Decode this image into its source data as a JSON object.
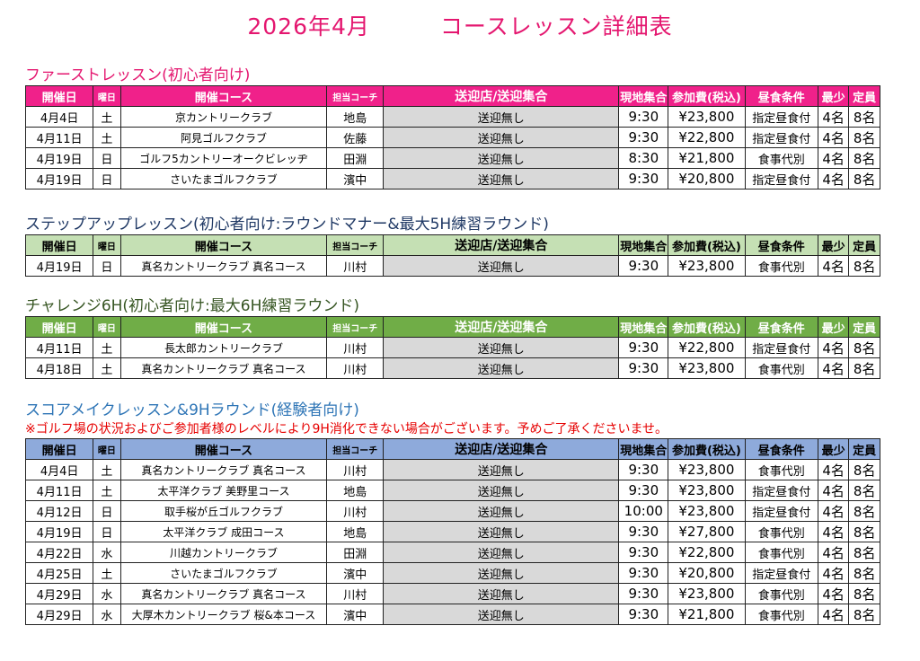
{
  "page": {
    "title": "2026年4月　　　コースレッスン詳細表",
    "title_color": "#e4166f"
  },
  "headers": {
    "date": "開催日",
    "weekday": "曜日",
    "course": "開催コース",
    "coach": "担当コーチ",
    "shuttle": "送迎店/送迎集合",
    "meet": "現地集合",
    "fee": "参加費(税込)",
    "lunch": "昼食条件",
    "min": "最少",
    "max": "定員"
  },
  "sections": [
    {
      "title": "ファーストレッスン(初心者向け)",
      "title_color": "#e4166f",
      "header_bg": "#f0218a",
      "header_text_color": "#ffffff",
      "rows": [
        {
          "date": "4月4日",
          "weekday": "土",
          "course": "京カントリークラブ",
          "coach": "地島",
          "shuttle": "送迎無し",
          "meet": "9:30",
          "fee": "¥23,800",
          "lunch": "指定昼食付",
          "min": "4名",
          "max": "8名"
        },
        {
          "date": "4月11日",
          "weekday": "土",
          "course": "阿見ゴルフクラブ",
          "coach": "佐藤",
          "shuttle": "送迎無し",
          "meet": "9:30",
          "fee": "¥22,800",
          "lunch": "指定昼食付",
          "min": "4名",
          "max": "8名"
        },
        {
          "date": "4月19日",
          "weekday": "日",
          "course": "ゴルフ5カントリーオークビレッヂ",
          "coach": "田淵",
          "shuttle": "送迎無し",
          "meet": "8:30",
          "fee": "¥21,800",
          "lunch": "食事代別",
          "min": "4名",
          "max": "8名"
        },
        {
          "date": "4月19日",
          "weekday": "日",
          "course": "さいたまゴルフクラブ",
          "coach": "濱中",
          "shuttle": "送迎無し",
          "meet": "9:30",
          "fee": "¥20,800",
          "lunch": "指定昼食付",
          "min": "4名",
          "max": "8名"
        }
      ]
    },
    {
      "title": "ステップアップレッスン(初心者向け:ラウンドマナー&最大5H練習ラウンド)",
      "title_color": "#1f3864",
      "header_bg": "#c5e0b4",
      "header_text_color": "#000000",
      "rows": [
        {
          "date": "4月19日",
          "weekday": "日",
          "course": "真名カントリークラブ 真名コース",
          "coach": "川村",
          "shuttle": "送迎無し",
          "meet": "9:30",
          "fee": "¥23,800",
          "lunch": "食事代別",
          "min": "4名",
          "max": "8名"
        }
      ]
    },
    {
      "title": "チャレンジ6H(初心者向け:最大6H練習ラウンド)",
      "title_color": "#375623",
      "header_bg": "#70ad47",
      "header_text_color": "#ffffff",
      "rows": [
        {
          "date": "4月11日",
          "weekday": "土",
          "course": "長太郎カントリークラブ",
          "coach": "川村",
          "shuttle": "送迎無し",
          "meet": "9:30",
          "fee": "¥22,800",
          "lunch": "指定昼食付",
          "min": "4名",
          "max": "8名"
        },
        {
          "date": "4月18日",
          "weekday": "土",
          "course": "真名カントリークラブ 真名コース",
          "coach": "川村",
          "shuttle": "送迎無し",
          "meet": "9:30",
          "fee": "¥23,800",
          "lunch": "食事代別",
          "min": "4名",
          "max": "8名"
        }
      ]
    },
    {
      "title": "スコアメイクレッスン&9Hラウンド(経験者向け)",
      "title_color": "#2e75b6",
      "note": "※ゴルフ場の状況およびご参加者様のレベルにより9H消化できない場合がございます。予めご了承くださいませ。",
      "note_color": "#e60000",
      "header_bg": "#8eaadb",
      "header_text_color": "#000000",
      "rows": [
        {
          "date": "4月4日",
          "weekday": "土",
          "course": "真名カントリークラブ 真名コース",
          "coach": "川村",
          "shuttle": "送迎無し",
          "meet": "9:30",
          "fee": "¥23,800",
          "lunch": "食事代別",
          "min": "4名",
          "max": "8名"
        },
        {
          "date": "4月11日",
          "weekday": "土",
          "course": "太平洋クラブ 美野里コース",
          "coach": "地島",
          "shuttle": "送迎無し",
          "meet": "9:30",
          "fee": "¥23,800",
          "lunch": "指定昼食付",
          "min": "4名",
          "max": "8名"
        },
        {
          "date": "4月12日",
          "weekday": "日",
          "course": "取手桜が丘ゴルフクラブ",
          "coach": "川村",
          "shuttle": "送迎無し",
          "meet": "10:00",
          "fee": "¥23,800",
          "lunch": "指定昼食付",
          "min": "4名",
          "max": "8名"
        },
        {
          "date": "4月19日",
          "weekday": "日",
          "course": "太平洋クラブ 成田コース",
          "coach": "地島",
          "shuttle": "送迎無し",
          "meet": "9:30",
          "fee": "¥27,800",
          "lunch": "食事代別",
          "min": "4名",
          "max": "8名"
        },
        {
          "date": "4月22日",
          "weekday": "水",
          "course": "川越カントリークラブ",
          "coach": "田淵",
          "shuttle": "送迎無し",
          "meet": "9:30",
          "fee": "¥22,800",
          "lunch": "食事代別",
          "min": "4名",
          "max": "8名"
        },
        {
          "date": "4月25日",
          "weekday": "土",
          "course": "さいたまゴルフクラブ",
          "coach": "濱中",
          "shuttle": "送迎無し",
          "meet": "9:30",
          "fee": "¥20,800",
          "lunch": "指定昼食付",
          "min": "4名",
          "max": "8名"
        },
        {
          "date": "4月29日",
          "weekday": "水",
          "course": "真名カントリークラブ 真名コース",
          "coach": "川村",
          "shuttle": "送迎無し",
          "meet": "9:30",
          "fee": "¥23,800",
          "lunch": "食事代別",
          "min": "4名",
          "max": "8名"
        },
        {
          "date": "4月29日",
          "weekday": "水",
          "course": "大厚木カントリークラブ 桜&本コース",
          "coach": "濱中",
          "shuttle": "送迎無し",
          "meet": "9:30",
          "fee": "¥21,800",
          "lunch": "食事代別",
          "min": "4名",
          "max": "8名"
        }
      ]
    }
  ]
}
